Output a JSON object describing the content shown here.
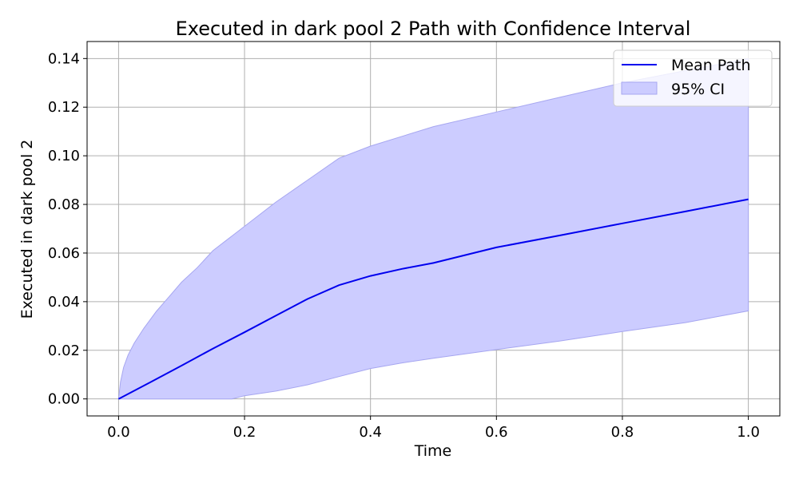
{
  "chart_data": {
    "type": "line",
    "title": "Executed in dark pool 2 Path with Confidence Interval",
    "xlabel": "Time",
    "ylabel": "Executed in dark pool 2",
    "xlim": [
      -0.05,
      1.05
    ],
    "ylim": [
      -0.007,
      0.147
    ],
    "xticks": [
      0.0,
      0.2,
      0.4,
      0.6,
      0.8,
      1.0
    ],
    "xtick_labels": [
      "0.0",
      "0.2",
      "0.4",
      "0.6",
      "0.8",
      "1.0"
    ],
    "yticks": [
      0.0,
      0.02,
      0.04,
      0.06,
      0.08,
      0.1,
      0.12,
      0.14
    ],
    "ytick_labels": [
      "0.00",
      "0.02",
      "0.04",
      "0.06",
      "0.08",
      "0.10",
      "0.12",
      "0.14"
    ],
    "grid": true,
    "legend_position": "top-right",
    "series": [
      {
        "name": "Mean Path",
        "kind": "line",
        "color": "#0000ee",
        "x": [
          0.0,
          0.05,
          0.1,
          0.15,
          0.2,
          0.25,
          0.3,
          0.35,
          0.4,
          0.45,
          0.5,
          0.6,
          0.7,
          0.8,
          0.9,
          1.0
        ],
        "y": [
          0.0,
          0.0068,
          0.0137,
          0.0207,
          0.0274,
          0.0343,
          0.0411,
          0.0468,
          0.0506,
          0.0535,
          0.0559,
          0.0623,
          0.0672,
          0.0722,
          0.0771,
          0.0821
        ]
      },
      {
        "name": "95% CI",
        "kind": "band",
        "color": "#ccccff",
        "edge_color": "#a6a6f0",
        "x": [
          0.0,
          0.003,
          0.008,
          0.015,
          0.025,
          0.04,
          0.06,
          0.08,
          0.1,
          0.125,
          0.15,
          0.175,
          0.18,
          0.2,
          0.25,
          0.3,
          0.35,
          0.4,
          0.45,
          0.5,
          0.6,
          0.7,
          0.8,
          0.9,
          1.0
        ],
        "lower": [
          0.0,
          0.0,
          0.0,
          0.0,
          0.0,
          0.0,
          0.0,
          0.0,
          0.0,
          0.0,
          0.0,
          0.0,
          0.0,
          0.0013,
          0.0032,
          0.0058,
          0.0092,
          0.0125,
          0.0148,
          0.0167,
          0.0203,
          0.0238,
          0.0277,
          0.0314,
          0.0362
        ],
        "upper": [
          0.0,
          0.007,
          0.013,
          0.018,
          0.023,
          0.029,
          0.036,
          0.042,
          0.048,
          0.054,
          0.061,
          0.066,
          0.067,
          0.071,
          0.081,
          0.09,
          0.099,
          0.104,
          0.108,
          0.112,
          0.118,
          0.124,
          0.13,
          0.135,
          0.14
        ]
      }
    ]
  }
}
